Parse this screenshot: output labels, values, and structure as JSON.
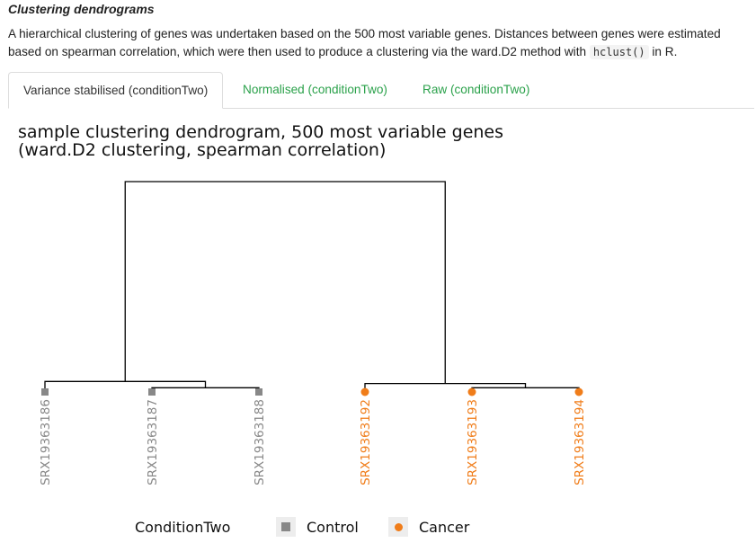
{
  "section": {
    "title": "Clustering dendrograms",
    "desc_before": "A hierarchical clustering of genes was undertaken based on the 500 most variable genes. Distances between genes were estimated based on spearman correlation, which were then used to produce a clustering via the ward.D2 method with ",
    "desc_code": "hclust()",
    "desc_after": " in R."
  },
  "tabs": [
    {
      "label": "Variance stabilised (conditionTwo)",
      "active": true
    },
    {
      "label": "Normalised (conditionTwo)",
      "active": false
    },
    {
      "label": "Raw (conditionTwo)",
      "active": false
    }
  ],
  "colors": {
    "accent": "#2aa14a",
    "control": "#888888",
    "cancer": "#f07d1a"
  },
  "chart_data": {
    "type": "dendrogram",
    "title_line1": "sample clustering dendrogram, 500 most variable genes",
    "title_line2": "(ward.D2 clustering, spearman correlation)",
    "leaves": [
      {
        "label": "SRX19363186",
        "group": "Control"
      },
      {
        "label": "SRX19363187",
        "group": "Control"
      },
      {
        "label": "SRX19363188",
        "group": "Control"
      },
      {
        "label": "SRX19363192",
        "group": "Cancer"
      },
      {
        "label": "SRX19363193",
        "group": "Cancer"
      },
      {
        "label": "SRX19363194",
        "group": "Cancer"
      }
    ],
    "merges": [
      {
        "a": 1,
        "b": 2,
        "height": 0.02
      },
      {
        "a": 0,
        "b": "m0",
        "height": 0.05
      },
      {
        "a": 4,
        "b": 5,
        "height": 0.02
      },
      {
        "a": 3,
        "b": "m2",
        "height": 0.04
      },
      {
        "a": "m1",
        "b": "m3",
        "height": 1.0
      }
    ],
    "legend": {
      "title": "ConditionTwo",
      "entries": [
        {
          "label": "Control",
          "shape": "square"
        },
        {
          "label": "Cancer",
          "shape": "circle"
        }
      ]
    }
  }
}
